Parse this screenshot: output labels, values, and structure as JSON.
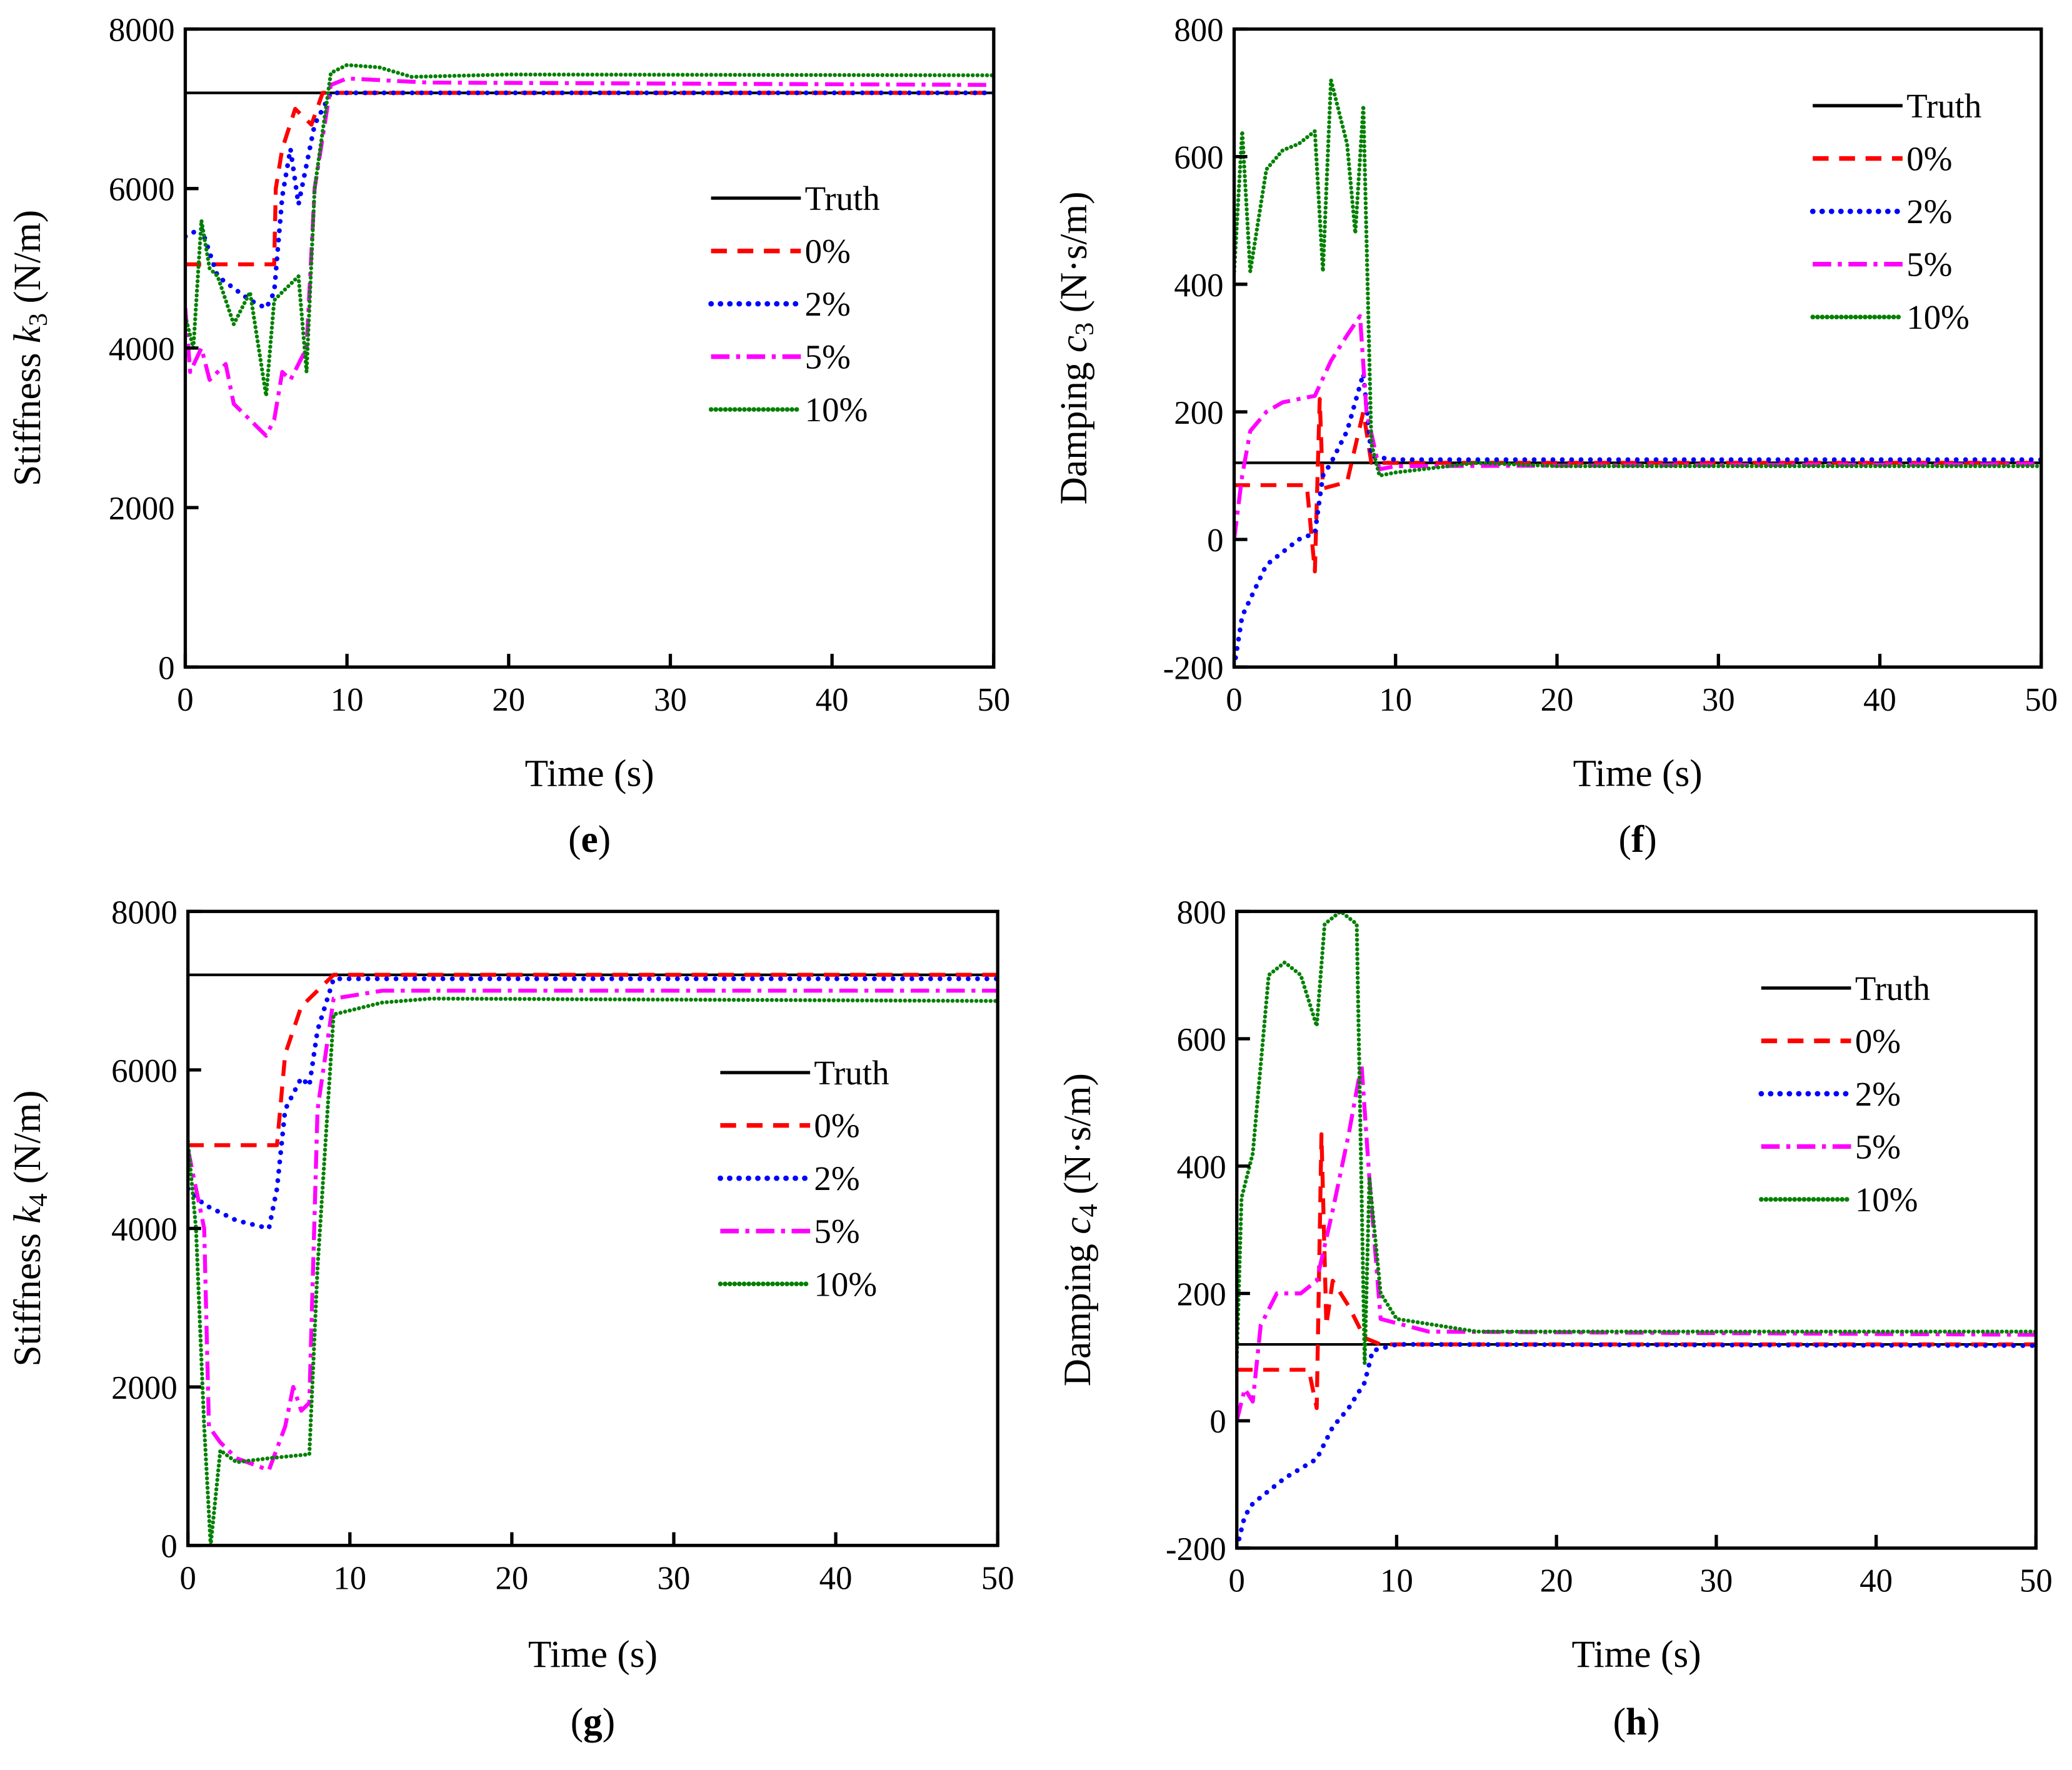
{
  "styles": {
    "Truth": {
      "color": "#000000",
      "dash": "solid"
    },
    "0%": {
      "color": "#ff0000",
      "dash": "dashed"
    },
    "2%": {
      "color": "#0000ff",
      "dash": "dotted"
    },
    "5%": {
      "color": "#ff00ff",
      "dash": "dash-dot"
    },
    "10%": {
      "color": "#008000",
      "dash": "fine-dotted"
    }
  },
  "chart_data": [
    {
      "type": "line",
      "panel_letter": "e",
      "ylabel": {
        "prefix": "Stiffness ",
        "var": "k",
        "sub": "3",
        "unit": " (N/m)"
      },
      "xlabel": "Time (s)",
      "xlim": [
        0,
        50
      ],
      "ylim": [
        0,
        8000
      ],
      "xticks": [
        0,
        10,
        20,
        30,
        40,
        50
      ],
      "yticks": [
        0,
        2000,
        4000,
        6000,
        8000
      ],
      "legend_position": "center-right",
      "series": [
        {
          "name": "Truth",
          "points": [
            [
              0,
              7200
            ],
            [
              50,
              7200
            ]
          ]
        },
        {
          "name": "0%",
          "points": [
            [
              0,
              5050
            ],
            [
              5.5,
              5050
            ],
            [
              5.6,
              6000
            ],
            [
              6,
              6500
            ],
            [
              6.8,
              7000
            ],
            [
              7.8,
              6800
            ],
            [
              8.5,
              7200
            ],
            [
              50,
              7200
            ]
          ]
        },
        {
          "name": "2%",
          "points": [
            [
              0,
              5400
            ],
            [
              1,
              5500
            ],
            [
              2,
              4900
            ],
            [
              4,
              4600
            ],
            [
              5,
              4500
            ],
            [
              5.5,
              4700
            ],
            [
              6,
              5900
            ],
            [
              6.5,
              6500
            ],
            [
              7,
              5800
            ],
            [
              7.5,
              6300
            ],
            [
              8,
              6800
            ],
            [
              9,
              7200
            ],
            [
              50,
              7200
            ]
          ]
        },
        {
          "name": "5%",
          "points": [
            [
              0,
              4500
            ],
            [
              0.3,
              3700
            ],
            [
              1,
              4000
            ],
            [
              1.5,
              3600
            ],
            [
              2.5,
              3800
            ],
            [
              3,
              3300
            ],
            [
              4,
              3100
            ],
            [
              5,
              2900
            ],
            [
              5.5,
              3100
            ],
            [
              6,
              3700
            ],
            [
              6.5,
              3600
            ],
            [
              7.5,
              4000
            ],
            [
              8,
              6000
            ],
            [
              9,
              7300
            ],
            [
              10,
              7380
            ],
            [
              15,
              7330
            ],
            [
              50,
              7300
            ]
          ]
        },
        {
          "name": "10%",
          "points": [
            [
              0,
              4400
            ],
            [
              0.5,
              4000
            ],
            [
              1,
              5600
            ],
            [
              1.5,
              5000
            ],
            [
              2,
              4900
            ],
            [
              3,
              4300
            ],
            [
              4,
              4700
            ],
            [
              5,
              3400
            ],
            [
              5.5,
              4600
            ],
            [
              6,
              4700
            ],
            [
              7,
              4900
            ],
            [
              7.5,
              3700
            ],
            [
              8,
              6000
            ],
            [
              9,
              7450
            ],
            [
              10,
              7550
            ],
            [
              12,
              7520
            ],
            [
              14,
              7400
            ],
            [
              20,
              7430
            ],
            [
              50,
              7420
            ]
          ]
        }
      ]
    },
    {
      "type": "line",
      "panel_letter": "f",
      "ylabel": {
        "prefix": "Damping ",
        "var": "c",
        "sub": "3",
        "unit": " (N·s/m)"
      },
      "xlabel": "Time (s)",
      "xlim": [
        0,
        50
      ],
      "ylim": [
        -200,
        800
      ],
      "xticks": [
        0,
        10,
        20,
        30,
        40,
        50
      ],
      "yticks": [
        -200,
        0,
        200,
        400,
        600,
        800
      ],
      "legend_position": "top-right",
      "series": [
        {
          "name": "Truth",
          "points": [
            [
              0,
              120
            ],
            [
              50,
              120
            ]
          ]
        },
        {
          "name": "0%",
          "points": [
            [
              0,
              85
            ],
            [
              4.5,
              85
            ],
            [
              5,
              -50
            ],
            [
              5.3,
              220
            ],
            [
              5.5,
              80
            ],
            [
              7,
              90
            ],
            [
              8,
              200
            ],
            [
              8.5,
              120
            ],
            [
              50,
              120
            ]
          ]
        },
        {
          "name": "2%",
          "points": [
            [
              0,
              -200
            ],
            [
              0.5,
              -120
            ],
            [
              2,
              -40
            ],
            [
              4,
              0
            ],
            [
              5,
              10
            ],
            [
              5.5,
              100
            ],
            [
              6,
              120
            ],
            [
              7,
              170
            ],
            [
              8,
              260
            ],
            [
              8.5,
              130
            ],
            [
              10,
              125
            ],
            [
              50,
              125
            ]
          ]
        },
        {
          "name": "5%",
          "points": [
            [
              0,
              0
            ],
            [
              0.5,
              100
            ],
            [
              1,
              170
            ],
            [
              2,
              200
            ],
            [
              3,
              215
            ],
            [
              4,
              220
            ],
            [
              5,
              225
            ],
            [
              6,
              280
            ],
            [
              7,
              320
            ],
            [
              7.8,
              350
            ],
            [
              8.2,
              200
            ],
            [
              9,
              110
            ],
            [
              10,
              115
            ],
            [
              50,
              118
            ]
          ]
        },
        {
          "name": "10%",
          "points": [
            [
              0,
              420
            ],
            [
              0.5,
              640
            ],
            [
              1,
              420
            ],
            [
              2,
              580
            ],
            [
              3,
              610
            ],
            [
              4,
              620
            ],
            [
              5,
              640
            ],
            [
              5.5,
              420
            ],
            [
              6,
              720
            ],
            [
              7,
              620
            ],
            [
              7.5,
              480
            ],
            [
              8,
              680
            ],
            [
              8.5,
              150
            ],
            [
              9,
              100
            ],
            [
              10,
              105
            ],
            [
              15,
              120
            ],
            [
              20,
              115
            ],
            [
              50,
              115
            ]
          ]
        }
      ]
    },
    {
      "type": "line",
      "panel_letter": "g",
      "ylabel": {
        "prefix": "Stiffness ",
        "var": "k",
        "sub": "4",
        "unit": " (N/m)"
      },
      "xlabel": "Time (s)",
      "xlim": [
        0,
        50
      ],
      "ylim": [
        0,
        8000
      ],
      "xticks": [
        0,
        10,
        20,
        30,
        40,
        50
      ],
      "yticks": [
        0,
        2000,
        4000,
        6000,
        8000
      ],
      "legend_position": "center-right",
      "series": [
        {
          "name": "Truth",
          "points": [
            [
              0,
              7200
            ],
            [
              50,
              7200
            ]
          ]
        },
        {
          "name": "0%",
          "points": [
            [
              0,
              5050
            ],
            [
              5.5,
              5050
            ],
            [
              6,
              6200
            ],
            [
              7,
              6800
            ],
            [
              8,
              7000
            ],
            [
              9,
              7200
            ],
            [
              50,
              7200
            ]
          ]
        },
        {
          "name": "2%",
          "points": [
            [
              0,
              4500
            ],
            [
              1,
              4300
            ],
            [
              3,
              4100
            ],
            [
              5,
              4000
            ],
            [
              5.5,
              4500
            ],
            [
              6,
              5500
            ],
            [
              7,
              5900
            ],
            [
              7.5,
              5800
            ],
            [
              8,
              6500
            ],
            [
              9,
              7150
            ],
            [
              50,
              7150
            ]
          ]
        },
        {
          "name": "5%",
          "points": [
            [
              0,
              5000
            ],
            [
              1,
              4000
            ],
            [
              1.3,
              1500
            ],
            [
              2,
              1300
            ],
            [
              3,
              1100
            ],
            [
              5,
              950
            ],
            [
              6,
              1500
            ],
            [
              6.5,
              2000
            ],
            [
              7,
              1700
            ],
            [
              7.5,
              1800
            ],
            [
              8,
              5500
            ],
            [
              9,
              6900
            ],
            [
              12,
              7000
            ],
            [
              50,
              7000
            ]
          ]
        },
        {
          "name": "10%",
          "points": [
            [
              0,
              5100
            ],
            [
              0.5,
              4000
            ],
            [
              1,
              1500
            ],
            [
              1.4,
              0
            ],
            [
              2,
              1200
            ],
            [
              3,
              1050
            ],
            [
              5,
              1100
            ],
            [
              7.5,
              1150
            ],
            [
              8,
              3500
            ],
            [
              9,
              6700
            ],
            [
              12,
              6850
            ],
            [
              15,
              6900
            ],
            [
              50,
              6870
            ]
          ]
        }
      ]
    },
    {
      "type": "line",
      "panel_letter": "h",
      "ylabel": {
        "prefix": "Damping ",
        "var": "c",
        "sub": "4",
        "unit": " (N·s/m)"
      },
      "xlabel": "Time (s)",
      "xlim": [
        0,
        50
      ],
      "ylim": [
        -200,
        800
      ],
      "xticks": [
        0,
        10,
        20,
        30,
        40,
        50
      ],
      "yticks": [
        -200,
        0,
        200,
        400,
        600,
        800
      ],
      "legend_position": "top-right",
      "series": [
        {
          "name": "Truth",
          "points": [
            [
              0,
              120
            ],
            [
              50,
              120
            ]
          ]
        },
        {
          "name": "0%",
          "points": [
            [
              0,
              80
            ],
            [
              4.5,
              80
            ],
            [
              5,
              20
            ],
            [
              5.3,
              450
            ],
            [
              5.6,
              150
            ],
            [
              6,
              220
            ],
            [
              7,
              180
            ],
            [
              8,
              130
            ],
            [
              9,
              120
            ],
            [
              50,
              120
            ]
          ]
        },
        {
          "name": "2%",
          "points": [
            [
              0,
              -200
            ],
            [
              0.5,
              -150
            ],
            [
              1,
              -130
            ],
            [
              3,
              -90
            ],
            [
              5,
              -60
            ],
            [
              6,
              -10
            ],
            [
              7,
              20
            ],
            [
              8,
              60
            ],
            [
              8.5,
              110
            ],
            [
              10,
              120
            ],
            [
              50,
              118
            ]
          ]
        },
        {
          "name": "5%",
          "points": [
            [
              0,
              0
            ],
            [
              0.5,
              50
            ],
            [
              1,
              30
            ],
            [
              1.5,
              150
            ],
            [
              2.5,
              200
            ],
            [
              4,
              200
            ],
            [
              5,
              220
            ],
            [
              6,
              330
            ],
            [
              7,
              450
            ],
            [
              7.8,
              560
            ],
            [
              8.3,
              380
            ],
            [
              9,
              160
            ],
            [
              12,
              140
            ],
            [
              50,
              135
            ]
          ]
        },
        {
          "name": "10%",
          "points": [
            [
              0,
              100
            ],
            [
              0.3,
              350
            ],
            [
              1,
              420
            ],
            [
              2,
              700
            ],
            [
              3,
              720
            ],
            [
              4,
              700
            ],
            [
              5,
              620
            ],
            [
              5.5,
              780
            ],
            [
              6.5,
              800
            ],
            [
              7.5,
              780
            ],
            [
              8,
              90
            ],
            [
              8.3,
              380
            ],
            [
              9,
              200
            ],
            [
              10,
              160
            ],
            [
              15,
              140
            ],
            [
              50,
              140
            ]
          ]
        }
      ]
    }
  ]
}
